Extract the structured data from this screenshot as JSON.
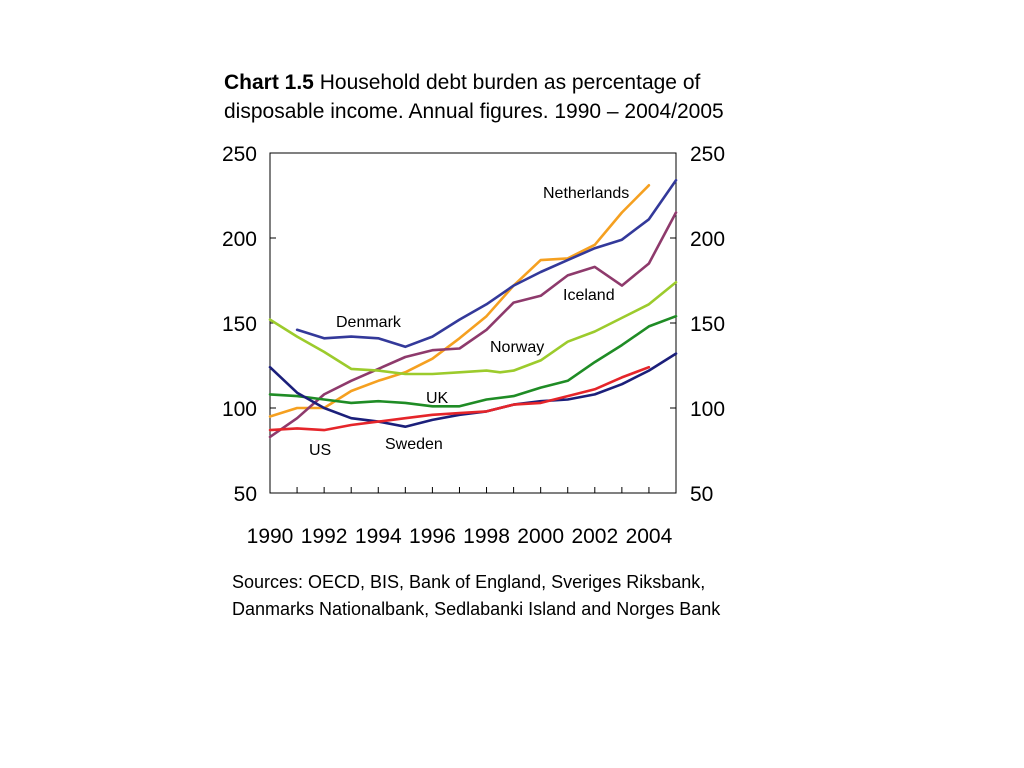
{
  "title": {
    "prefix": "Chart 1.5",
    "text": "Household debt burden as percentage of disposable income. Annual figures. 1990 – 2004/2005"
  },
  "sources": {
    "line1": "Sources: OECD, BIS, Bank of England, Sveriges Riksbank,",
    "line2": "Danmarks Nationalbank, Sedlabanki Island and Norges Bank"
  },
  "chart_data": {
    "type": "line",
    "title": "Household debt burden as percentage of disposable income. Annual figures. 1990 – 2004/2005",
    "xlabel": "",
    "ylabel": "",
    "xlim": [
      1990,
      2005
    ],
    "ylim": [
      50,
      250
    ],
    "x_ticks": [
      "1990",
      "1992",
      "1994",
      "1996",
      "1998",
      "2000",
      "2002",
      "2004"
    ],
    "y_ticks_left": [
      "250",
      "200",
      "150",
      "100",
      "50"
    ],
    "y_ticks_right": [
      "250",
      "200",
      "150",
      "100",
      "50"
    ],
    "grid": false,
    "legend": "direct labels",
    "series": [
      {
        "name": "Netherlands",
        "color": "#f5a020",
        "x": [
          1990,
          1991,
          1992,
          1993,
          1994,
          1995,
          1996,
          1997,
          1998,
          1999,
          2000,
          2001,
          2002,
          2003,
          2004
        ],
        "values": [
          95,
          100,
          100,
          110,
          116,
          121,
          129,
          141,
          154,
          172,
          187,
          188,
          196,
          215,
          231
        ]
      },
      {
        "name": "Denmark",
        "color": "#33399a",
        "x": [
          1991,
          1992,
          1993,
          1994,
          1995,
          1996,
          1997,
          1998,
          1999,
          2000,
          2001,
          2002,
          2003,
          2004,
          2005
        ],
        "values": [
          146,
          141,
          142,
          141,
          136,
          142,
          152,
          161,
          172,
          180,
          187,
          194,
          199,
          211,
          234
        ]
      },
      {
        "name": "Iceland",
        "color": "#8e3a6c",
        "x": [
          1990,
          1991,
          1992,
          1993,
          1994,
          1995,
          1996,
          1997,
          1998,
          1999,
          2000,
          2001,
          2002,
          2003,
          2004,
          2005
        ],
        "values": [
          83,
          94,
          108,
          116,
          123,
          130,
          134,
          135,
          146,
          162,
          166,
          178,
          183,
          172,
          185,
          215
        ]
      },
      {
        "name": "Norway",
        "color": "#9ccb2c",
        "x": [
          1990,
          1991,
          1992,
          1993,
          1994,
          1995,
          1996,
          1997,
          1998,
          1998.5,
          1999,
          2000,
          2001,
          2002,
          2003,
          2004,
          2005
        ],
        "values": [
          152,
          142,
          133,
          123,
          122,
          120,
          120,
          121,
          122,
          121,
          122,
          128,
          139,
          145,
          153,
          161,
          174
        ]
      },
      {
        "name": "UK",
        "color": "#1f8c25",
        "x": [
          1990,
          1991,
          1992,
          1993,
          1994,
          1995,
          1996,
          1997,
          1998,
          1999,
          2000,
          2001,
          2002,
          2003,
          2004,
          2005
        ],
        "values": [
          108,
          107,
          105,
          103,
          104,
          103,
          101,
          101,
          105,
          107,
          112,
          116,
          127,
          137,
          148,
          154
        ]
      },
      {
        "name": "Sweden",
        "color": "#1b1f7a",
        "x": [
          1990,
          1991,
          1992,
          1993,
          1994,
          1995,
          1996,
          1997,
          1998,
          1999,
          2000,
          2001,
          2002,
          2003,
          2004,
          2005
        ],
        "values": [
          124,
          109,
          100,
          94,
          92,
          89,
          93,
          96,
          98,
          102,
          104,
          105,
          108,
          114,
          122,
          132
        ]
      },
      {
        "name": "US",
        "color": "#e5252a",
        "x": [
          1990,
          1991,
          1992,
          1993,
          1994,
          1995,
          1996,
          1997,
          1998,
          1999,
          2000,
          2001,
          2002,
          2003,
          2004
        ],
        "values": [
          87,
          88,
          87,
          90,
          92,
          94,
          96,
          97,
          98,
          102,
          103,
          107,
          111,
          118,
          124
        ]
      }
    ]
  }
}
